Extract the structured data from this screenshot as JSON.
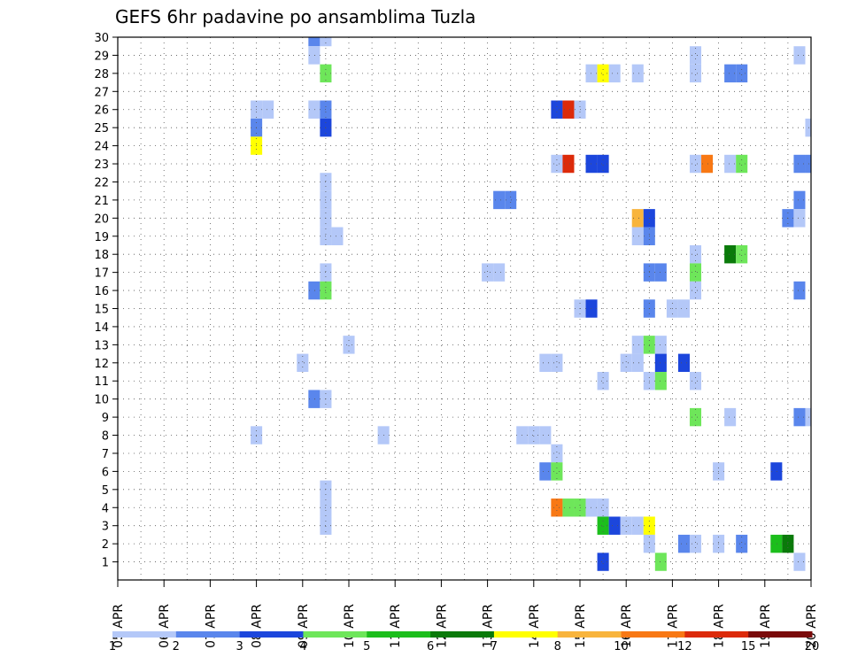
{
  "chart_data": {
    "type": "heatmap",
    "title": "GEFS 6hr padavine po ansamblima Tuzla",
    "x_tick_labels": [
      "05 APR",
      "06 APR",
      "07 APR",
      "08 APR",
      "09 APR",
      "10 APR",
      "11 APR",
      "12 APR",
      "13 APR",
      "14 APR",
      "15 APR",
      "16 APR",
      "17 APR",
      "18 APR",
      "19 APR",
      "20 APR"
    ],
    "y_tick_labels": [
      "1",
      "2",
      "3",
      "4",
      "5",
      "6",
      "7",
      "8",
      "9",
      "10",
      "11",
      "12",
      "13",
      "14",
      "15",
      "16",
      "17",
      "18",
      "19",
      "20",
      "21",
      "22",
      "23",
      "24",
      "25",
      "26",
      "27",
      "28",
      "29",
      "30"
    ],
    "x_range": [
      0,
      60
    ],
    "y_range": [
      0,
      30
    ],
    "grid": true,
    "time_steps_per_day": 4,
    "legend": {
      "placement": "bottom",
      "colors": [
        "#b4c8f8",
        "#5a86ec",
        "#1c46dc",
        "#6ee65a",
        "#1cbe1c",
        "#0a7a0a",
        "#ffff00",
        "#f8b43c",
        "#f87814",
        "#dc2a0a",
        "#7a0a0a"
      ],
      "labels": [
        "1",
        "2",
        "3",
        "4",
        "5",
        "6",
        "7",
        "8",
        "10",
        "12",
        "15",
        "20"
      ]
    },
    "cells": [
      {
        "member": 30,
        "t": [
          17
        ],
        "level": 2
      },
      {
        "member": 30,
        "t": [
          18
        ],
        "level": 1
      },
      {
        "member": 29,
        "t": [
          17
        ],
        "level": 1
      },
      {
        "member": 29,
        "t": [
          50
        ],
        "level": 1
      },
      {
        "member": 29,
        "t": [
          59
        ],
        "level": 1
      },
      {
        "member": 28,
        "t": [
          18
        ],
        "level": 4
      },
      {
        "member": 28,
        "t": [
          41
        ],
        "level": 1
      },
      {
        "member": 28,
        "t": [
          42
        ],
        "level": 7
      },
      {
        "member": 28,
        "t": [
          43
        ],
        "level": 1
      },
      {
        "member": 28,
        "t": [
          45
        ],
        "level": 1
      },
      {
        "member": 28,
        "t": [
          50
        ],
        "level": 1
      },
      {
        "member": 28,
        "t": [
          53,
          54
        ],
        "level": 2
      },
      {
        "member": 26,
        "t": [
          12,
          13
        ],
        "level": 1
      },
      {
        "member": 26,
        "t": [
          17
        ],
        "level": 1
      },
      {
        "member": 26,
        "t": [
          18
        ],
        "level": 2
      },
      {
        "member": 26,
        "t": [
          38
        ],
        "level": 3
      },
      {
        "member": 26,
        "t": [
          39
        ],
        "level": 10
      },
      {
        "member": 26,
        "t": [
          40
        ],
        "level": 1
      },
      {
        "member": 25,
        "t": [
          12
        ],
        "level": 2
      },
      {
        "member": 25,
        "t": [
          18
        ],
        "level": 3
      },
      {
        "member": 25,
        "t": [
          60
        ],
        "level": 1
      },
      {
        "member": 24,
        "t": [
          12
        ],
        "level": 7
      },
      {
        "member": 23,
        "t": [
          38
        ],
        "level": 1
      },
      {
        "member": 23,
        "t": [
          39
        ],
        "level": 10
      },
      {
        "member": 23,
        "t": [
          41,
          42
        ],
        "level": 3
      },
      {
        "member": 23,
        "t": [
          50
        ],
        "level": 1
      },
      {
        "member": 23,
        "t": [
          51
        ],
        "level": 9
      },
      {
        "member": 23,
        "t": [
          53
        ],
        "level": 1
      },
      {
        "member": 23,
        "t": [
          54
        ],
        "level": 4
      },
      {
        "member": 23,
        "t": [
          59,
          60
        ],
        "level": 2
      },
      {
        "member": 22,
        "t": [
          18
        ],
        "level": 1
      },
      {
        "member": 21,
        "t": [
          18
        ],
        "level": 1
      },
      {
        "member": 21,
        "t": [
          33,
          34
        ],
        "level": 2
      },
      {
        "member": 21,
        "t": [
          59
        ],
        "level": 2
      },
      {
        "member": 20,
        "t": [
          18
        ],
        "level": 1
      },
      {
        "member": 20,
        "t": [
          45
        ],
        "level": 8
      },
      {
        "member": 20,
        "t": [
          46
        ],
        "level": 3
      },
      {
        "member": 20,
        "t": [
          58
        ],
        "level": 2
      },
      {
        "member": 20,
        "t": [
          59
        ],
        "level": 1
      },
      {
        "member": 19,
        "t": [
          18,
          19
        ],
        "level": 1
      },
      {
        "member": 19,
        "t": [
          45
        ],
        "level": 1
      },
      {
        "member": 19,
        "t": [
          46
        ],
        "level": 2
      },
      {
        "member": 18,
        "t": [
          50
        ],
        "level": 1
      },
      {
        "member": 18,
        "t": [
          53
        ],
        "level": 6
      },
      {
        "member": 18,
        "t": [
          54
        ],
        "level": 4
      },
      {
        "member": 17,
        "t": [
          18
        ],
        "level": 1
      },
      {
        "member": 17,
        "t": [
          32,
          33
        ],
        "level": 1
      },
      {
        "member": 17,
        "t": [
          46,
          47
        ],
        "level": 2
      },
      {
        "member": 17,
        "t": [
          50
        ],
        "level": 4
      },
      {
        "member": 16,
        "t": [
          17
        ],
        "level": 2
      },
      {
        "member": 16,
        "t": [
          18
        ],
        "level": 4
      },
      {
        "member": 16,
        "t": [
          50
        ],
        "level": 1
      },
      {
        "member": 16,
        "t": [
          59
        ],
        "level": 2
      },
      {
        "member": 15,
        "t": [
          40
        ],
        "level": 1
      },
      {
        "member": 15,
        "t": [
          41
        ],
        "level": 3
      },
      {
        "member": 15,
        "t": [
          46
        ],
        "level": 2
      },
      {
        "member": 15,
        "t": [
          48,
          49
        ],
        "level": 1
      },
      {
        "member": 13,
        "t": [
          20
        ],
        "level": 1
      },
      {
        "member": 13,
        "t": [
          45
        ],
        "level": 1
      },
      {
        "member": 13,
        "t": [
          46
        ],
        "level": 4
      },
      {
        "member": 13,
        "t": [
          47
        ],
        "level": 1
      },
      {
        "member": 12,
        "t": [
          16
        ],
        "level": 1
      },
      {
        "member": 12,
        "t": [
          37,
          38
        ],
        "level": 1
      },
      {
        "member": 12,
        "t": [
          44,
          45
        ],
        "level": 1
      },
      {
        "member": 12,
        "t": [
          47
        ],
        "level": 3
      },
      {
        "member": 12,
        "t": [
          49
        ],
        "level": 3
      },
      {
        "member": 11,
        "t": [
          42
        ],
        "level": 1
      },
      {
        "member": 11,
        "t": [
          46
        ],
        "level": 1
      },
      {
        "member": 11,
        "t": [
          47
        ],
        "level": 4
      },
      {
        "member": 11,
        "t": [
          50
        ],
        "level": 1
      },
      {
        "member": 10,
        "t": [
          17
        ],
        "level": 2
      },
      {
        "member": 10,
        "t": [
          18
        ],
        "level": 1
      },
      {
        "member": 9,
        "t": [
          50
        ],
        "level": 4
      },
      {
        "member": 9,
        "t": [
          53
        ],
        "level": 1
      },
      {
        "member": 9,
        "t": [
          59
        ],
        "level": 2
      },
      {
        "member": 9,
        "t": [
          60
        ],
        "level": 1
      },
      {
        "member": 8,
        "t": [
          12
        ],
        "level": 1
      },
      {
        "member": 8,
        "t": [
          23
        ],
        "level": 1
      },
      {
        "member": 8,
        "t": [
          35,
          36,
          37
        ],
        "level": 1
      },
      {
        "member": 7,
        "t": [
          38
        ],
        "level": 1
      },
      {
        "member": 6,
        "t": [
          37
        ],
        "level": 2
      },
      {
        "member": 6,
        "t": [
          38
        ],
        "level": 4
      },
      {
        "member": 6,
        "t": [
          52
        ],
        "level": 1
      },
      {
        "member": 6,
        "t": [
          57
        ],
        "level": 3
      },
      {
        "member": 5,
        "t": [
          18
        ],
        "level": 1
      },
      {
        "member": 4,
        "t": [
          18
        ],
        "level": 1
      },
      {
        "member": 4,
        "t": [
          38
        ],
        "level": 9
      },
      {
        "member": 4,
        "t": [
          39,
          40
        ],
        "level": 4
      },
      {
        "member": 4,
        "t": [
          41,
          42
        ],
        "level": 1
      },
      {
        "member": 3,
        "t": [
          18
        ],
        "level": 1
      },
      {
        "member": 3,
        "t": [
          42
        ],
        "level": 5
      },
      {
        "member": 3,
        "t": [
          43
        ],
        "level": 3
      },
      {
        "member": 3,
        "t": [
          44,
          45
        ],
        "level": 1
      },
      {
        "member": 3,
        "t": [
          46
        ],
        "level": 7
      },
      {
        "member": 2,
        "t": [
          46
        ],
        "level": 1
      },
      {
        "member": 2,
        "t": [
          49
        ],
        "level": 2
      },
      {
        "member": 2,
        "t": [
          50
        ],
        "level": 1
      },
      {
        "member": 2,
        "t": [
          52
        ],
        "level": 1
      },
      {
        "member": 2,
        "t": [
          54
        ],
        "level": 2
      },
      {
        "member": 2,
        "t": [
          57
        ],
        "level": 5
      },
      {
        "member": 2,
        "t": [
          58
        ],
        "level": 6
      },
      {
        "member": 1,
        "t": [
          42
        ],
        "level": 3
      },
      {
        "member": 1,
        "t": [
          47
        ],
        "level": 4
      },
      {
        "member": 1,
        "t": [
          59
        ],
        "level": 1
      }
    ]
  }
}
